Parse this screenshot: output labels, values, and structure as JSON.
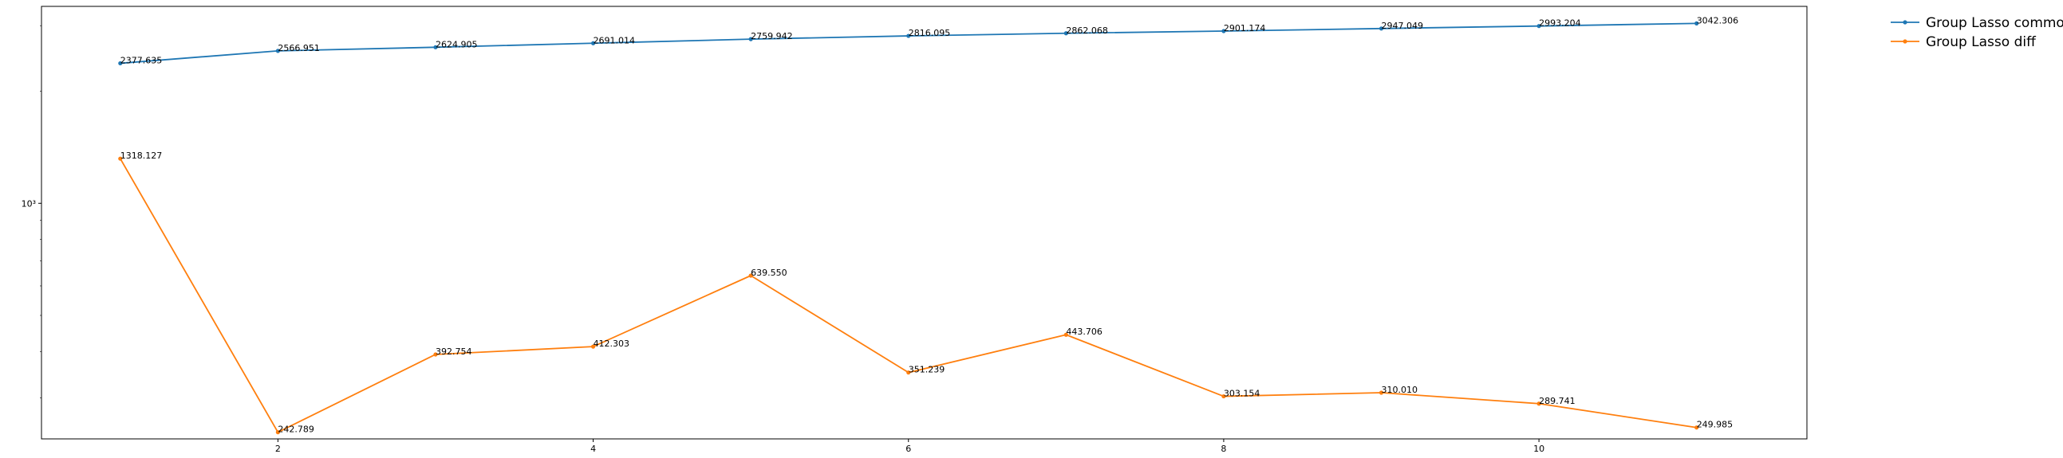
{
  "chart_data": {
    "type": "line",
    "title": "",
    "xlabel": "",
    "ylabel": "",
    "x": [
      1,
      2,
      3,
      4,
      5,
      6,
      7,
      8,
      9,
      10,
      11
    ],
    "xlim": [
      0.5,
      11.7
    ],
    "ylim": [
      233,
      3380
    ],
    "yscale": "log",
    "xticks": [
      2,
      4,
      6,
      8,
      10
    ],
    "yticks": [
      {
        "value": 1000,
        "label": "10³"
      }
    ],
    "grid": false,
    "legend": "outside top-right",
    "series": [
      {
        "name": "Group Lasso common",
        "color": "#1f77b4",
        "values": [
          2377.635,
          2566.951,
          2624.905,
          2691.014,
          2759.942,
          2816.095,
          2862.068,
          2901.174,
          2947.049,
          2993.204,
          3042.306
        ],
        "labels": [
          "2377.635",
          "2566.951",
          "2624.905",
          "2691.014",
          "2759.942",
          "2816.095",
          "2862.068",
          "2901.174",
          "2947.049",
          "2993.204",
          "3042.306"
        ]
      },
      {
        "name": "Group Lasso diff",
        "color": "#ff7f0e",
        "values": [
          1318.127,
          242.789,
          392.754,
          412.303,
          639.55,
          351.239,
          443.706,
          303.154,
          310.01,
          289.741,
          249.985
        ],
        "labels": [
          "1318.127",
          "242.789",
          "392.754",
          "412.303",
          "639.550",
          "351.239",
          "443.706",
          "303.154",
          "310.010",
          "289.741",
          "249.985"
        ]
      }
    ]
  }
}
